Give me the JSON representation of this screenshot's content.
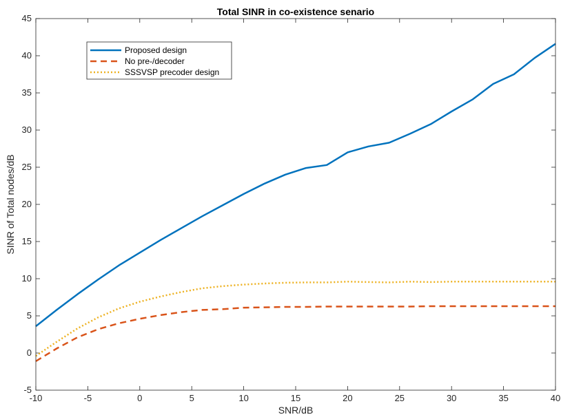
{
  "chart_data": {
    "type": "line",
    "title": "Total SINR in co-existence senario",
    "xlabel": "SNR/dB",
    "ylabel": "SINR of Total nodes/dB",
    "xlim": [
      -10,
      40
    ],
    "ylim": [
      -5,
      45
    ],
    "xticks": [
      -10,
      -5,
      0,
      5,
      10,
      15,
      20,
      25,
      30,
      35,
      40
    ],
    "yticks": [
      -5,
      0,
      5,
      10,
      15,
      20,
      25,
      30,
      35,
      40,
      45
    ],
    "grid": false,
    "legend_position": "top-left",
    "x": [
      -10,
      -8,
      -6,
      -4,
      -2,
      0,
      2,
      4,
      6,
      8,
      10,
      12,
      14,
      16,
      18,
      20,
      22,
      24,
      26,
      28,
      30,
      32,
      34,
      36,
      38,
      40
    ],
    "series": [
      {
        "name": "Proposed design",
        "color": "#0072BD",
        "style": "solid",
        "values": [
          3.6,
          5.8,
          7.9,
          9.9,
          11.8,
          13.5,
          15.2,
          16.8,
          18.4,
          19.9,
          21.4,
          22.8,
          24.0,
          24.9,
          25.3,
          27.0,
          27.8,
          28.3,
          29.5,
          30.8,
          32.5,
          34.1,
          36.2,
          37.5,
          39.7,
          41.6
        ]
      },
      {
        "name": "No pre-/decoder",
        "color": "#D95319",
        "style": "dashed",
        "values": [
          -1.1,
          0.6,
          2.1,
          3.2,
          4.0,
          4.6,
          5.1,
          5.5,
          5.8,
          5.9,
          6.1,
          6.15,
          6.2,
          6.2,
          6.25,
          6.25,
          6.25,
          6.25,
          6.25,
          6.3,
          6.3,
          6.3,
          6.3,
          6.3,
          6.3,
          6.3
        ]
      },
      {
        "name": "SSSVSP precoder design",
        "color": "#EDB120",
        "style": "dotted",
        "values": [
          -0.4,
          1.5,
          3.3,
          4.8,
          6.0,
          6.9,
          7.6,
          8.2,
          8.7,
          9.0,
          9.2,
          9.35,
          9.45,
          9.5,
          9.5,
          9.6,
          9.55,
          9.5,
          9.6,
          9.55,
          9.6,
          9.6,
          9.6,
          9.6,
          9.6,
          9.6
        ]
      }
    ]
  }
}
